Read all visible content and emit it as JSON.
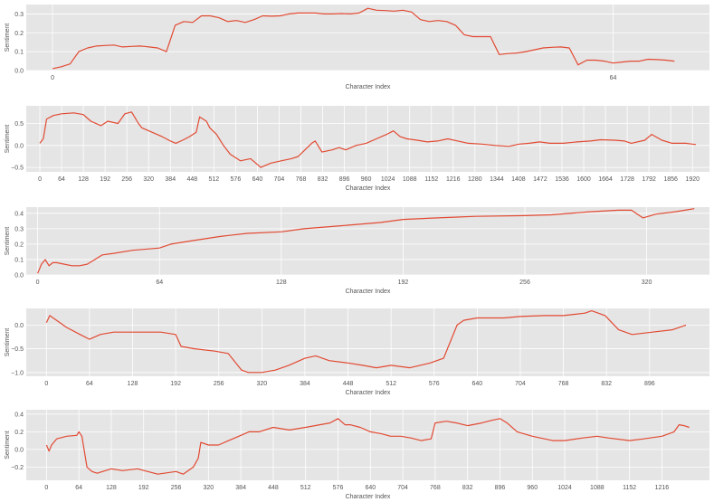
{
  "style": {
    "plot_bg": "#e5e5e5",
    "grid": "#ffffff",
    "line": "#e24a33",
    "text": "#555555"
  },
  "chart_data": [
    {
      "type": "line",
      "xlabel": "Character Index",
      "ylabel": "Sentiment",
      "xlim": [
        -3,
        75
      ],
      "ylim": [
        0.0,
        0.35
      ],
      "xticks": [
        0,
        64
      ],
      "yticks": [
        0.0,
        0.1,
        0.2,
        0.3
      ],
      "ytick_labels": [
        "0.0",
        "0.1",
        "0.2",
        "0.3"
      ],
      "grid": true,
      "series": [
        {
          "x": [
            0,
            1,
            2,
            3,
            4,
            5,
            6,
            7,
            8,
            9,
            10,
            10.5,
            11,
            12,
            13,
            14,
            15,
            16,
            17,
            18,
            19,
            20,
            21,
            22,
            23,
            24,
            25,
            26,
            27,
            28,
            29,
            30,
            31,
            32,
            33,
            34,
            35,
            36,
            37,
            38,
            39,
            40,
            41,
            42,
            43,
            44,
            45,
            46,
            47,
            48,
            49,
            50,
            51,
            52,
            53,
            54,
            55,
            56,
            57,
            58,
            59,
            60,
            61,
            62,
            63,
            64,
            65,
            66,
            67,
            68,
            69,
            70,
            71
          ],
          "y": [
            0.01,
            0.02,
            0.035,
            0.1,
            0.12,
            0.13,
            0.133,
            0.135,
            0.125,
            0.128,
            0.13,
            0.128,
            0.125,
            0.12,
            0.1,
            0.24,
            0.26,
            0.255,
            0.29,
            0.29,
            0.28,
            0.26,
            0.265,
            0.255,
            0.27,
            0.29,
            0.288,
            0.29,
            0.3,
            0.305,
            0.305,
            0.305,
            0.3,
            0.3,
            0.302,
            0.3,
            0.305,
            0.33,
            0.32,
            0.318,
            0.315,
            0.32,
            0.31,
            0.27,
            0.26,
            0.265,
            0.26,
            0.24,
            0.19,
            0.18,
            0.18,
            0.18,
            0.085,
            0.09,
            0.093,
            0.1,
            0.11,
            0.12,
            0.123,
            0.125,
            0.12,
            0.03,
            0.055,
            0.055,
            0.05,
            0.04,
            0.045,
            0.05,
            0.05,
            0.06,
            0.058,
            0.055,
            0.05
          ]
        }
      ]
    },
    {
      "type": "line",
      "xlabel": "Character Index",
      "ylabel": "Sentiment",
      "xlim": [
        -40,
        1970
      ],
      "ylim": [
        -0.6,
        0.9
      ],
      "xticks": [
        0,
        64,
        128,
        192,
        256,
        320,
        384,
        448,
        512,
        576,
        640,
        704,
        768,
        832,
        896,
        960,
        1024,
        1088,
        1152,
        1216,
        1280,
        1344,
        1408,
        1472,
        1536,
        1600,
        1664,
        1728,
        1792,
        1856,
        1920
      ],
      "yticks": [
        -0.5,
        0.0,
        0.5
      ],
      "ytick_labels": [
        "−0.5",
        "0.0",
        "0.5"
      ],
      "grid": true,
      "series": [
        {
          "x": [
            0,
            10,
            20,
            40,
            64,
            100,
            128,
            150,
            180,
            200,
            230,
            250,
            270,
            290,
            300,
            330,
            360,
            384,
            400,
            420,
            440,
            460,
            470,
            490,
            500,
            520,
            540,
            560,
            590,
            620,
            650,
            680,
            710,
            740,
            760,
            780,
            800,
            810,
            830,
            860,
            880,
            900,
            930,
            960,
            990,
            1020,
            1040,
            1060,
            1080,
            1110,
            1140,
            1170,
            1200,
            1230,
            1260,
            1300,
            1340,
            1380,
            1410,
            1440,
            1470,
            1500,
            1540,
            1580,
            1620,
            1650,
            1690,
            1720,
            1740,
            1780,
            1800,
            1830,
            1860,
            1900,
            1930
          ],
          "y": [
            0.05,
            0.15,
            0.6,
            0.68,
            0.72,
            0.74,
            0.7,
            0.55,
            0.45,
            0.55,
            0.5,
            0.72,
            0.76,
            0.5,
            0.4,
            0.3,
            0.2,
            0.1,
            0.05,
            0.12,
            0.2,
            0.3,
            0.65,
            0.55,
            0.4,
            0.25,
            0.0,
            -0.2,
            -0.35,
            -0.3,
            -0.5,
            -0.4,
            -0.35,
            -0.3,
            -0.25,
            -0.1,
            0.05,
            0.1,
            -0.15,
            -0.1,
            -0.05,
            -0.1,
            0.0,
            0.05,
            0.15,
            0.25,
            0.33,
            0.2,
            0.15,
            0.12,
            0.08,
            0.1,
            0.15,
            0.1,
            0.05,
            0.03,
            0.0,
            -0.02,
            0.03,
            0.05,
            0.08,
            0.05,
            0.05,
            0.08,
            0.1,
            0.13,
            0.12,
            0.1,
            0.05,
            0.12,
            0.25,
            0.12,
            0.05,
            0.05,
            0.02
          ]
        }
      ]
    },
    {
      "type": "line",
      "xlabel": "Character Index",
      "ylabel": "Sentiment",
      "xlim": [
        -6,
        353
      ],
      "ylim": [
        0.0,
        0.44
      ],
      "xticks": [
        0,
        64,
        128,
        192,
        256,
        320
      ],
      "yticks": [
        0.0,
        0.1,
        0.2,
        0.3,
        0.4
      ],
      "ytick_labels": [
        "0.0",
        "0.1",
        "0.2",
        "0.3",
        "0.4"
      ],
      "grid": true,
      "series": [
        {
          "x": [
            0,
            2,
            4,
            6,
            8,
            10,
            14,
            18,
            22,
            26,
            30,
            34,
            40,
            50,
            64,
            70,
            80,
            96,
            110,
            128,
            140,
            160,
            180,
            192,
            210,
            230,
            256,
            270,
            290,
            305,
            310,
            312,
            318,
            325,
            335,
            345
          ],
          "y": [
            0.01,
            0.07,
            0.1,
            0.06,
            0.08,
            0.08,
            0.07,
            0.06,
            0.06,
            0.07,
            0.1,
            0.13,
            0.14,
            0.16,
            0.175,
            0.2,
            0.22,
            0.25,
            0.27,
            0.28,
            0.3,
            0.32,
            0.34,
            0.36,
            0.37,
            0.38,
            0.385,
            0.39,
            0.41,
            0.42,
            0.42,
            0.42,
            0.37,
            0.395,
            0.41,
            0.43
          ]
        }
      ]
    },
    {
      "type": "line",
      "xlabel": "Character Index",
      "ylabel": "Sentiment",
      "xlim": [
        -30,
        985
      ],
      "ylim": [
        -1.08,
        0.35
      ],
      "xticks": [
        0,
        64,
        128,
        192,
        256,
        320,
        384,
        448,
        512,
        576,
        640,
        704,
        768,
        832,
        896
      ],
      "yticks": [
        -1.0,
        -0.5,
        0.0
      ],
      "ytick_labels": [
        "−1.0",
        "−0.5",
        "0.0"
      ],
      "grid": true,
      "series": [
        {
          "x": [
            0,
            5,
            15,
            30,
            50,
            64,
            80,
            100,
            128,
            150,
            170,
            192,
            200,
            220,
            250,
            270,
            290,
            300,
            320,
            340,
            360,
            384,
            400,
            420,
            448,
            470,
            490,
            512,
            540,
            570,
            590,
            610,
            620,
            640,
            680,
            704,
            740,
            768,
            800,
            810,
            830,
            850,
            870,
            900,
            930,
            950
          ],
          "y": [
            0.05,
            0.2,
            0.1,
            -0.05,
            -0.2,
            -0.3,
            -0.2,
            -0.15,
            -0.15,
            -0.15,
            -0.15,
            -0.2,
            -0.45,
            -0.5,
            -0.55,
            -0.6,
            -0.95,
            -1.0,
            -1.0,
            -0.95,
            -0.85,
            -0.7,
            -0.65,
            -0.75,
            -0.8,
            -0.85,
            -0.9,
            -0.85,
            -0.9,
            -0.8,
            -0.7,
            0.0,
            0.1,
            0.15,
            0.15,
            0.18,
            0.2,
            0.2,
            0.25,
            0.3,
            0.2,
            -0.1,
            -0.2,
            -0.15,
            -0.1,
            0.0
          ]
        }
      ]
    },
    {
      "type": "line",
      "xlabel": "Character Index",
      "ylabel": "Sentiment",
      "xlim": [
        -40,
        1310
      ],
      "ylim": [
        -0.35,
        0.45
      ],
      "xticks": [
        0,
        64,
        128,
        192,
        256,
        320,
        384,
        448,
        512,
        576,
        640,
        704,
        768,
        832,
        896,
        960,
        1024,
        1088,
        1152,
        1216
      ],
      "yticks": [
        -0.2,
        0.0,
        0.2,
        0.4
      ],
      "ytick_labels": [
        "−0.2",
        "0.0",
        "0.2",
        "0.4"
      ],
      "grid": true,
      "series": [
        {
          "x": [
            0,
            5,
            10,
            20,
            40,
            60,
            64,
            70,
            80,
            90,
            100,
            128,
            150,
            180,
            200,
            220,
            256,
            270,
            290,
            300,
            305,
            320,
            340,
            360,
            380,
            400,
            420,
            448,
            480,
            512,
            540,
            560,
            576,
            590,
            600,
            620,
            640,
            660,
            680,
            700,
            720,
            740,
            760,
            768,
            790,
            810,
            832,
            860,
            880,
            896,
            910,
            930,
            960,
            1000,
            1024,
            1060,
            1088,
            1110,
            1152,
            1180,
            1216,
            1240,
            1250,
            1260,
            1270
          ],
          "y": [
            0.05,
            -0.02,
            0.05,
            0.12,
            0.15,
            0.16,
            0.2,
            0.15,
            -0.2,
            -0.25,
            -0.27,
            -0.22,
            -0.24,
            -0.22,
            -0.25,
            -0.28,
            -0.25,
            -0.28,
            -0.2,
            -0.1,
            0.08,
            0.05,
            0.05,
            0.1,
            0.15,
            0.2,
            0.2,
            0.25,
            0.22,
            0.25,
            0.28,
            0.3,
            0.35,
            0.28,
            0.28,
            0.25,
            0.2,
            0.18,
            0.15,
            0.15,
            0.13,
            0.1,
            0.12,
            0.3,
            0.32,
            0.3,
            0.27,
            0.3,
            0.33,
            0.35,
            0.3,
            0.2,
            0.15,
            0.1,
            0.1,
            0.13,
            0.15,
            0.13,
            0.1,
            0.12,
            0.15,
            0.2,
            0.28,
            0.27,
            0.25
          ]
        }
      ]
    }
  ]
}
